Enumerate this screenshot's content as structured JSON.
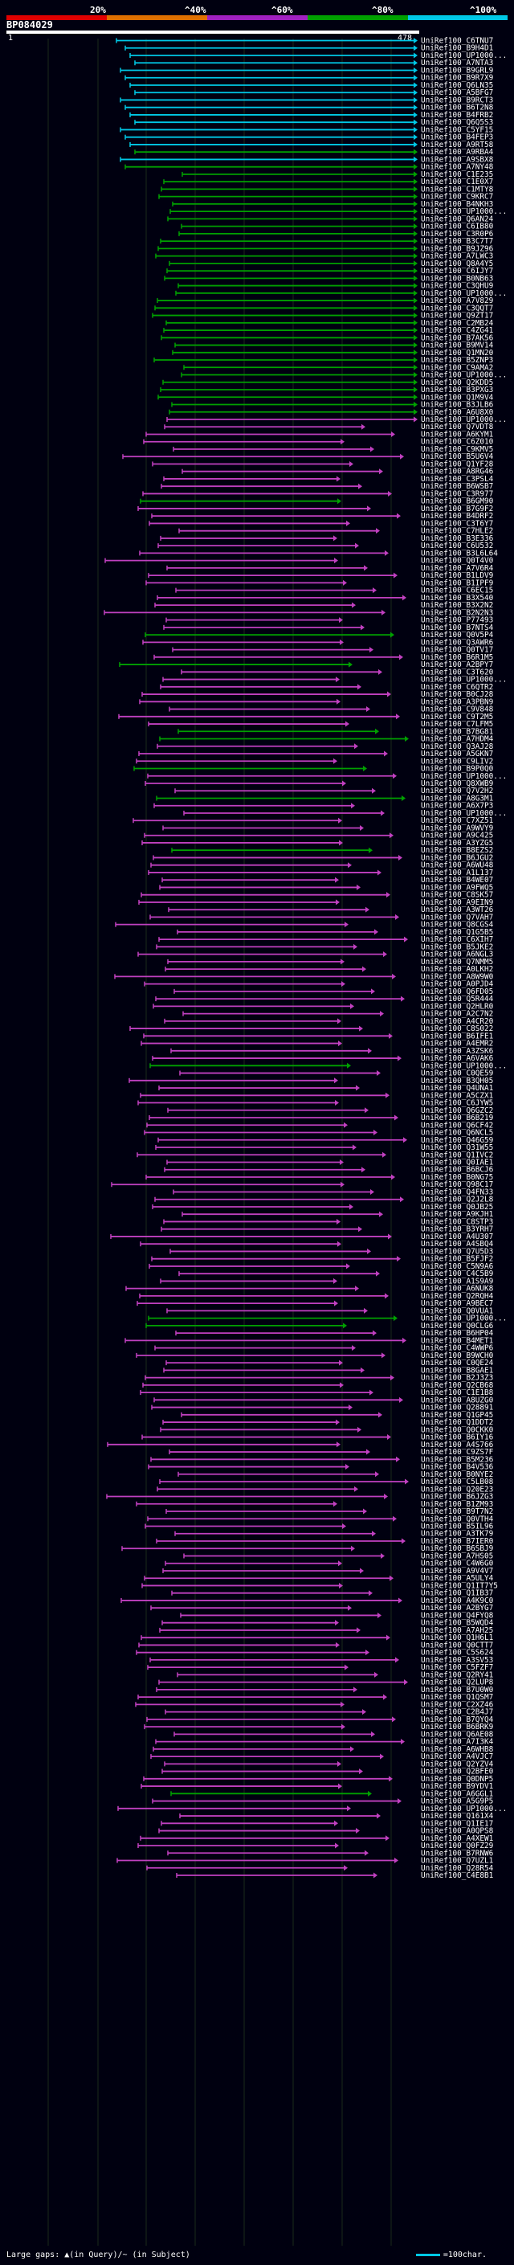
{
  "legend": {
    "labels": [
      "20%",
      "^40%",
      "^60%",
      "^80%",
      "^100%"
    ],
    "colors": [
      "#e00000",
      "#e07000",
      "#a020c0",
      "#00a000",
      "#00c8e6"
    ]
  },
  "query": {
    "title": "BP084029",
    "start": "1",
    "end": "478"
  },
  "footer": {
    "gaps_text": "Large gaps: ▲(in Query)/~ (in Subject)",
    "scale_text": "=100char."
  },
  "hits": [
    {
      "id": "UniRef100_C6TNU7",
      "c": "#00c8e6"
    },
    {
      "id": "UniRef100_B9H4D1",
      "c": "#00c8e6"
    },
    {
      "id": "UniRef100_UP1000...",
      "c": "#00c8e6"
    },
    {
      "id": "UniRef100_A7NTA3",
      "c": "#00c8e6"
    },
    {
      "id": "UniRef100_B9GRL9",
      "c": "#00c8e6"
    },
    {
      "id": "UniRef100_B9R7X9",
      "c": "#00c8e6"
    },
    {
      "id": "UniRef100_Q6LN35",
      "c": "#00c8e6"
    },
    {
      "id": "UniRef100_A5BFG7",
      "c": "#00c8e6"
    },
    {
      "id": "UniRef100_B9RCT3",
      "c": "#00c8e6"
    },
    {
      "id": "UniRef100_B6T2N8",
      "c": "#00c8e6"
    },
    {
      "id": "UniRef100_B4FRB2",
      "c": "#00c8e6"
    },
    {
      "id": "UniRef100_Q6Q5S3",
      "c": "#00c8e6"
    },
    {
      "id": "UniRef100_C5YF15",
      "c": "#00c8e6"
    },
    {
      "id": "UniRef100_B4FEP3",
      "c": "#00c8e6"
    },
    {
      "id": "UniRef100_A9RT58",
      "c": "#00c8e6"
    },
    {
      "id": "UniRef100_A9RBA4",
      "c": "#00a000"
    },
    {
      "id": "UniRef100_A9SBX8",
      "c": "#00c8e6"
    },
    {
      "id": "UniRef100_A7NY48",
      "c": "#00a000"
    },
    {
      "id": "UniRef100_C1E235",
      "c": "#00a000"
    },
    {
      "id": "UniRef100_C1E0X7",
      "c": "#00a000"
    },
    {
      "id": "UniRef100_C1MTY8",
      "c": "#00a000"
    },
    {
      "id": "UniRef100_C9KRC7",
      "c": "#00a000"
    },
    {
      "id": "UniRef100_B4NKH3",
      "c": "#00a000"
    },
    {
      "id": "UniRef100_UP1000...",
      "c": "#00a000"
    },
    {
      "id": "UniRef100_Q6AN24",
      "c": "#00a000"
    },
    {
      "id": "UniRef100_C6IB80",
      "c": "#00a000"
    },
    {
      "id": "UniRef100_C3R0P6",
      "c": "#00a000"
    },
    {
      "id": "UniRef100_B3C7T7",
      "c": "#00a000"
    },
    {
      "id": "UniRef100_B9JZ96",
      "c": "#00a000"
    },
    {
      "id": "UniRef100_A7LWC3",
      "c": "#00a000"
    },
    {
      "id": "UniRef100_Q8A4Y5",
      "c": "#00a000"
    },
    {
      "id": "UniRef100_C6IJY7",
      "c": "#00a000"
    },
    {
      "id": "UniRef100_B0NB63",
      "c": "#00a000"
    },
    {
      "id": "UniRef100_C3QHU9",
      "c": "#00a000"
    },
    {
      "id": "UniRef100_UP1000...",
      "c": "#00a000"
    },
    {
      "id": "UniRef100_A7V829",
      "c": "#00a000"
    },
    {
      "id": "UniRef100_C3QQT7",
      "c": "#00a000"
    },
    {
      "id": "UniRef100_Q9ZT17",
      "c": "#00a000"
    },
    {
      "id": "UniRef100_C2MB24",
      "c": "#00a000"
    },
    {
      "id": "UniRef100_C4ZG41",
      "c": "#00a000"
    },
    {
      "id": "UniRef100_B7AK56",
      "c": "#00a000"
    },
    {
      "id": "UniRef100_B9MV14",
      "c": "#00a000"
    },
    {
      "id": "UniRef100_Q1MN20",
      "c": "#00a000"
    },
    {
      "id": "UniRef100_B5ZNP3",
      "c": "#00a000"
    },
    {
      "id": "UniRef100_C9AMA2",
      "c": "#00a000"
    },
    {
      "id": "UniRef100_UP1000...",
      "c": "#00a000"
    },
    {
      "id": "UniRef100_Q2KDD5",
      "c": "#00a000"
    },
    {
      "id": "UniRef100_B3PXG3",
      "c": "#00a000"
    },
    {
      "id": "UniRef100_Q1M9V4",
      "c": "#00a000"
    },
    {
      "id": "UniRef100_B3JLB6",
      "c": "#00a000"
    },
    {
      "id": "UniRef100_A6U8X0",
      "c": "#00a000"
    },
    {
      "id": "UniRef100_UP1000...",
      "c": "#c040c0"
    },
    {
      "id": "UniRef100_Q7VDT8",
      "c": "#c040c0"
    },
    {
      "id": "UniRef100_A6KYM1",
      "c": "#c040c0"
    },
    {
      "id": "UniRef100_C6Z010",
      "c": "#c040c0"
    },
    {
      "id": "UniRef100_C9KMV5",
      "c": "#c040c0"
    },
    {
      "id": "UniRef100_B5U6V4",
      "c": "#c040c0"
    },
    {
      "id": "UniRef100_Q1YF28",
      "c": "#c040c0"
    },
    {
      "id": "UniRef100_A8RG46",
      "c": "#c040c0"
    },
    {
      "id": "UniRef100_C3PSL4",
      "c": "#c040c0"
    },
    {
      "id": "UniRef100_B6WSB7",
      "c": "#c040c0"
    },
    {
      "id": "UniRef100_C3R977",
      "c": "#c040c0"
    },
    {
      "id": "UniRef100_B6GM90",
      "c": "#00a000"
    },
    {
      "id": "UniRef100_B7G9F2",
      "c": "#c040c0"
    },
    {
      "id": "UniRef100_B4DRF2",
      "c": "#c040c0"
    },
    {
      "id": "UniRef100_C3T6Y7",
      "c": "#c040c0"
    },
    {
      "id": "UniRef100_C7HLE2",
      "c": "#c040c0"
    },
    {
      "id": "UniRef100_B3E336",
      "c": "#c040c0"
    },
    {
      "id": "UniRef100_C6U532",
      "c": "#c040c0"
    },
    {
      "id": "UniRef100_B3L6L64",
      "c": "#c040c0"
    },
    {
      "id": "UniRef100_Q0T4V0",
      "c": "#c040c0"
    },
    {
      "id": "UniRef100_A7V6R4",
      "c": "#c040c0"
    },
    {
      "id": "UniRef100_B1LDV9",
      "c": "#c040c0"
    },
    {
      "id": "UniRef100_B1IPF9",
      "c": "#c040c0"
    },
    {
      "id": "UniRef100_C6EC15",
      "c": "#c040c0"
    },
    {
      "id": "UniRef100_B3X540",
      "c": "#c040c0"
    },
    {
      "id": "UniRef100_B3X2N2",
      "c": "#c040c0"
    },
    {
      "id": "UniRef100_B2N2N3",
      "c": "#c040c0"
    },
    {
      "id": "UniRef100_P77493",
      "c": "#c040c0"
    },
    {
      "id": "UniRef100_B7NTS4",
      "c": "#c040c0"
    },
    {
      "id": "UniRef100_Q0V5P4",
      "c": "#00a000"
    },
    {
      "id": "UniRef100_Q3AWR6",
      "c": "#c040c0"
    },
    {
      "id": "UniRef100_Q0TV17",
      "c": "#c040c0"
    },
    {
      "id": "UniRef100_B6R1M5",
      "c": "#c040c0"
    },
    {
      "id": "UniRef100_A2BPY7",
      "c": "#00a000"
    },
    {
      "id": "UniRef100_C3T620",
      "c": "#c040c0"
    },
    {
      "id": "UniRef100_UP1000...",
      "c": "#c040c0"
    },
    {
      "id": "UniRef100_C6QTR2",
      "c": "#c040c0"
    },
    {
      "id": "UniRef100_B0CJ28",
      "c": "#c040c0"
    },
    {
      "id": "UniRef100_A3PBN9",
      "c": "#c040c0"
    },
    {
      "id": "UniRef100_C9V848",
      "c": "#c040c0"
    },
    {
      "id": "UniRef100_C9T2M5",
      "c": "#c040c0"
    },
    {
      "id": "UniRef100_C7LFM5",
      "c": "#c040c0"
    },
    {
      "id": "UniRef100_B7BG81",
      "c": "#00a000"
    },
    {
      "id": "UniRef100_A7HDM4",
      "c": "#00a000"
    },
    {
      "id": "UniRef100_Q3AJ28",
      "c": "#c040c0"
    },
    {
      "id": "UniRef100_A5GKN7",
      "c": "#c040c0"
    },
    {
      "id": "UniRef100_C9LIV2",
      "c": "#c040c0"
    },
    {
      "id": "UniRef100_B9P0Q0",
      "c": "#00a000"
    },
    {
      "id": "UniRef100_UP1000...",
      "c": "#c040c0"
    },
    {
      "id": "UniRef100_Q8XWB9",
      "c": "#c040c0"
    },
    {
      "id": "UniRef100_Q7V2H2",
      "c": "#c040c0"
    },
    {
      "id": "UniRef100_A8G3M1",
      "c": "#00a000"
    },
    {
      "id": "UniRef100_A6X7P3",
      "c": "#c040c0"
    },
    {
      "id": "UniRef100_UP1000...",
      "c": "#c040c0"
    },
    {
      "id": "UniRef100_C7XZ51",
      "c": "#c040c0"
    },
    {
      "id": "UniRef100_A9WVY9",
      "c": "#c040c0"
    },
    {
      "id": "UniRef100_A9C425",
      "c": "#c040c0"
    },
    {
      "id": "UniRef100_A3YZG5",
      "c": "#c040c0"
    },
    {
      "id": "UniRef100_B8EZS2",
      "c": "#00a000"
    },
    {
      "id": "UniRef100_B6JGU2",
      "c": "#c040c0"
    },
    {
      "id": "UniRef100_A6WU48",
      "c": "#c040c0"
    },
    {
      "id": "UniRef100_A1L137",
      "c": "#c040c0"
    },
    {
      "id": "UniRef100_B4WE07",
      "c": "#c040c0"
    },
    {
      "id": "UniRef100_A9FWQ5",
      "c": "#c040c0"
    },
    {
      "id": "UniRef100_C8SK57",
      "c": "#c040c0"
    },
    {
      "id": "UniRef100_A9EIN9",
      "c": "#c040c0"
    },
    {
      "id": "UniRef100_A3WT26",
      "c": "#c040c0"
    },
    {
      "id": "UniRef100_Q7VAH7",
      "c": "#c040c0"
    },
    {
      "id": "UniRef100_Q8CGS4",
      "c": "#c040c0"
    },
    {
      "id": "UniRef100_Q1G5B5",
      "c": "#c040c0"
    },
    {
      "id": "UniRef100_C6XIH7",
      "c": "#c040c0"
    },
    {
      "id": "UniRef100_B5JKE2",
      "c": "#c040c0"
    },
    {
      "id": "UniRef100_A6NGL3",
      "c": "#c040c0"
    },
    {
      "id": "UniRef100_Q7NMM5",
      "c": "#c040c0"
    },
    {
      "id": "UniRef100_A0LKH2",
      "c": "#c040c0"
    },
    {
      "id": "UniRef100_A8W9W0",
      "c": "#c040c0"
    },
    {
      "id": "UniRef100_A0PJD4",
      "c": "#c040c0"
    },
    {
      "id": "UniRef100_Q6FD05",
      "c": "#c040c0"
    },
    {
      "id": "UniRef100_Q5R444",
      "c": "#c040c0"
    },
    {
      "id": "UniRef100_Q2HLR0",
      "c": "#c040c0"
    },
    {
      "id": "UniRef100_A2C7N2",
      "c": "#c040c0"
    },
    {
      "id": "UniRef100_A4CR20",
      "c": "#c040c0"
    },
    {
      "id": "UniRef100_C8S022",
      "c": "#c040c0"
    },
    {
      "id": "UniRef100_B6IFE1",
      "c": "#c040c0"
    },
    {
      "id": "UniRef100_A4EMR2",
      "c": "#c040c0"
    },
    {
      "id": "UniRef100_A3ZSK6",
      "c": "#c040c0"
    },
    {
      "id": "UniRef100_A6VAK6",
      "c": "#c040c0"
    },
    {
      "id": "UniRef100_UP1000...",
      "c": "#00a000"
    },
    {
      "id": "UniRef100_C0QE59",
      "c": "#c040c0"
    },
    {
      "id": "UniRef100_B3QH05",
      "c": "#c040c0"
    },
    {
      "id": "UniRef100_Q4UNA1",
      "c": "#c040c0"
    },
    {
      "id": "UniRef100_A5CZX1",
      "c": "#c040c0"
    },
    {
      "id": "UniRef100_C6JYW5",
      "c": "#c040c0"
    },
    {
      "id": "UniRef100_Q6GZC2",
      "c": "#c040c0"
    },
    {
      "id": "UniRef100_B6B219",
      "c": "#c040c0"
    },
    {
      "id": "UniRef100_Q6CF42",
      "c": "#c040c0"
    },
    {
      "id": "UniRef100_Q6NCL5",
      "c": "#c040c0"
    },
    {
      "id": "UniRef100_Q46G59",
      "c": "#c040c0"
    },
    {
      "id": "UniRef100_Q31W55",
      "c": "#c040c0"
    },
    {
      "id": "UniRef100_Q1IVC2",
      "c": "#c040c0"
    },
    {
      "id": "UniRef100_Q0IAE1",
      "c": "#c040c0"
    },
    {
      "id": "UniRef100_B6BCJ6",
      "c": "#c040c0"
    },
    {
      "id": "UniRef100_B0NG75",
      "c": "#c040c0"
    },
    {
      "id": "UniRef100_Q98C17",
      "c": "#c040c0"
    },
    {
      "id": "UniRef100_Q4FN33",
      "c": "#c040c0"
    },
    {
      "id": "UniRef100_Q2J2L8",
      "c": "#c040c0"
    },
    {
      "id": "UniRef100_Q0JB25",
      "c": "#c040c0"
    },
    {
      "id": "UniRef100_A9KJH1",
      "c": "#c040c0"
    },
    {
      "id": "UniRef100_C8STP3",
      "c": "#c040c0"
    },
    {
      "id": "UniRef100_B3YRH7",
      "c": "#c040c0"
    },
    {
      "id": "UniRef100_A4U307",
      "c": "#c040c0"
    },
    {
      "id": "UniRef100_A4SBQ4",
      "c": "#c040c0"
    },
    {
      "id": "UniRef100_Q7U5D3",
      "c": "#c040c0"
    },
    {
      "id": "UniRef100_B5FJF2",
      "c": "#c040c0"
    },
    {
      "id": "UniRef100_C5N9A6",
      "c": "#c040c0"
    },
    {
      "id": "UniRef100_C4C5B9",
      "c": "#c040c0"
    },
    {
      "id": "UniRef100_A1S9A9",
      "c": "#c040c0"
    },
    {
      "id": "UniRef100_A6NUK8",
      "c": "#c040c0"
    },
    {
      "id": "UniRef100_Q2RQH4",
      "c": "#c040c0"
    },
    {
      "id": "UniRef100_A9BEC7",
      "c": "#c040c0"
    },
    {
      "id": "UniRef100_Q0VUA1",
      "c": "#c040c0"
    },
    {
      "id": "UniRef100_UP1000...",
      "c": "#00a000"
    },
    {
      "id": "UniRef100_Q0CLG6",
      "c": "#00a000"
    },
    {
      "id": "UniRef100_B6HP04",
      "c": "#c040c0"
    },
    {
      "id": "UniRef100_B4MET1",
      "c": "#c040c0"
    },
    {
      "id": "UniRef100_C4WWP6",
      "c": "#c040c0"
    },
    {
      "id": "UniRef100_B9WCH0",
      "c": "#c040c0"
    },
    {
      "id": "UniRef100_C0QE24",
      "c": "#c040c0"
    },
    {
      "id": "UniRef100_B8GAE1",
      "c": "#c040c0"
    },
    {
      "id": "UniRef100_B2J3Z3",
      "c": "#c040c0"
    },
    {
      "id": "UniRef100_Q2CB68",
      "c": "#c040c0"
    },
    {
      "id": "UniRef100_C1E1B8",
      "c": "#c040c0"
    },
    {
      "id": "UniRef100_A8UZG0",
      "c": "#c040c0"
    },
    {
      "id": "UniRef100_Q28891",
      "c": "#c040c0"
    },
    {
      "id": "UniRef100_Q1GP45",
      "c": "#c040c0"
    },
    {
      "id": "UniRef100_Q1DDT2",
      "c": "#c040c0"
    },
    {
      "id": "UniRef100_Q0CKK0",
      "c": "#c040c0"
    },
    {
      "id": "UniRef100_B6IY16",
      "c": "#c040c0"
    },
    {
      "id": "UniRef100_A4S766",
      "c": "#c040c0"
    },
    {
      "id": "UniRef100_C9ZS7F",
      "c": "#c040c0"
    },
    {
      "id": "UniRef100_B5M236",
      "c": "#c040c0"
    },
    {
      "id": "UniRef100_B4V536",
      "c": "#c040c0"
    },
    {
      "id": "UniRef100_B0NYE2",
      "c": "#c040c0"
    },
    {
      "id": "UniRef100_C5LB08",
      "c": "#c040c0"
    },
    {
      "id": "UniRef100_Q20E23",
      "c": "#c040c0"
    },
    {
      "id": "UniRef100_B6JZG3",
      "c": "#c040c0"
    },
    {
      "id": "UniRef100_B1ZM93",
      "c": "#c040c0"
    },
    {
      "id": "UniRef100_B9T7N2",
      "c": "#c040c0"
    },
    {
      "id": "UniRef100_Q0VTH4",
      "c": "#c040c0"
    },
    {
      "id": "UniRef100_B5IL96",
      "c": "#c040c0"
    },
    {
      "id": "UniRef100_A3TK79",
      "c": "#c040c0"
    },
    {
      "id": "UniRef100_B7IER0",
      "c": "#c040c0"
    },
    {
      "id": "UniRef100_B6SBJ9",
      "c": "#c040c0"
    },
    {
      "id": "UniRef100_A7HS05",
      "c": "#c040c0"
    },
    {
      "id": "UniRef100_C4W6G0",
      "c": "#c040c0"
    },
    {
      "id": "UniRef100_A9V4V7",
      "c": "#c040c0"
    },
    {
      "id": "UniRef100_A5ULY4",
      "c": "#c040c0"
    },
    {
      "id": "UniRef100_Q1IT7Y5",
      "c": "#c040c0"
    },
    {
      "id": "UniRef100_Q1IB37",
      "c": "#c040c0"
    },
    {
      "id": "UniRef100_A4K9C0",
      "c": "#c040c0"
    },
    {
      "id": "UniRef100_A2BYG7",
      "c": "#c040c0"
    },
    {
      "id": "UniRef100_Q4FYQ8",
      "c": "#c040c0"
    },
    {
      "id": "UniRef100_B5WQD4",
      "c": "#c040c0"
    },
    {
      "id": "UniRef100_A7AH25",
      "c": "#c040c0"
    },
    {
      "id": "UniRef100_Q1H6L1",
      "c": "#c040c0"
    },
    {
      "id": "UniRef100_Q0CTT7",
      "c": "#c040c0"
    },
    {
      "id": "UniRef100_C5S624",
      "c": "#c040c0"
    },
    {
      "id": "UniRef100_A3SV53",
      "c": "#c040c0"
    },
    {
      "id": "UniRef100_C5FZF7",
      "c": "#c040c0"
    },
    {
      "id": "UniRef100_Q2RY41",
      "c": "#c040c0"
    },
    {
      "id": "UniRef100_Q2LUP8",
      "c": "#c040c0"
    },
    {
      "id": "UniRef100_B7U0W0",
      "c": "#c040c0"
    },
    {
      "id": "UniRef100_Q1QSM7",
      "c": "#c040c0"
    },
    {
      "id": "UniRef100_C2XZ46",
      "c": "#c040c0"
    },
    {
      "id": "UniRef100_C2B4J7",
      "c": "#c040c0"
    },
    {
      "id": "UniRef100_B7QYQ4",
      "c": "#c040c0"
    },
    {
      "id": "UniRef100_B6BRK9",
      "c": "#c040c0"
    },
    {
      "id": "UniRef100_Q6AE08",
      "c": "#c040c0"
    },
    {
      "id": "UniRef100_A7I3K4",
      "c": "#c040c0"
    },
    {
      "id": "UniRef100_A6WHB8",
      "c": "#c040c0"
    },
    {
      "id": "UniRef100_A4VJC7",
      "c": "#c040c0"
    },
    {
      "id": "UniRef100_Q2YZV4",
      "c": "#c040c0"
    },
    {
      "id": "UniRef100_Q2BFE0",
      "c": "#c040c0"
    },
    {
      "id": "UniRef100_Q0DNP5",
      "c": "#c040c0"
    },
    {
      "id": "UniRef100_B9YDV1",
      "c": "#c040c0"
    },
    {
      "id": "UniRef100_A6GGL1",
      "c": "#00a000"
    },
    {
      "id": "UniRef100_A5G9P5",
      "c": "#c040c0"
    },
    {
      "id": "UniRef100_UP1000...",
      "c": "#c040c0"
    },
    {
      "id": "UniRef100_Q161X4",
      "c": "#c040c0"
    },
    {
      "id": "UniRef100_Q1IE17",
      "c": "#c040c0"
    },
    {
      "id": "UniRef100_A0QPS8",
      "c": "#c040c0"
    },
    {
      "id": "UniRef100_A4XEW1",
      "c": "#c040c0"
    },
    {
      "id": "UniRef100_Q0FZ29",
      "c": "#c040c0"
    },
    {
      "id": "UniRef100_B7RNW6",
      "c": "#c040c0"
    },
    {
      "id": "UniRef100_Q7UZL1",
      "c": "#c040c0"
    },
    {
      "id": "UniRef100_Q28R54",
      "c": "#c040c0"
    },
    {
      "id": "UniRef100_C4E8B1",
      "c": "#c040c0"
    }
  ]
}
